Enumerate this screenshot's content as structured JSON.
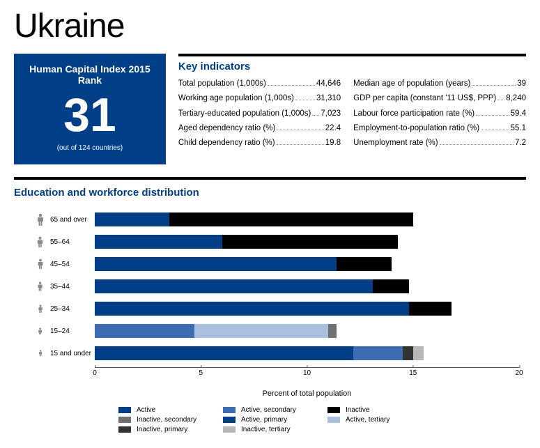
{
  "title": "Ukraine",
  "rank": {
    "label": "Human Capital Index 2015 Rank",
    "value": "31",
    "sub": "(out of 124 countries)"
  },
  "key": {
    "title": "Key indicators",
    "left": [
      {
        "l": "Total population (1,000s)",
        "v": "44,646"
      },
      {
        "l": "Working age population (1,000s)",
        "v": "31,310"
      },
      {
        "l": "Tertiary-educated population (1,000s)",
        "v": "7,023"
      },
      {
        "l": "Aged dependency ratio (%)",
        "v": "22.4"
      },
      {
        "l": "Child dependency ratio (%)",
        "v": "19.8"
      }
    ],
    "right": [
      {
        "l": "Median age of population (years)",
        "v": "39"
      },
      {
        "l": "GDP per capita (constant '11 US$, PPP)",
        "v": "8,240"
      },
      {
        "l": "Labour force participation rate (%)",
        "v": "59.4"
      },
      {
        "l": "Employment-to-population ratio (%)",
        "v": "55.1"
      },
      {
        "l": "Unemployment rate (%)",
        "v": "7.2"
      }
    ]
  },
  "section_title": "Education and workforce distribution",
  "chart": {
    "xmax": 20,
    "ticks": [
      0,
      5,
      10,
      15,
      20
    ],
    "xlabel": "Percent of total population",
    "colors": {
      "active": "#003f87",
      "active_primary": "#003f87",
      "active_secondary": "#3d6cb3",
      "active_tertiary": "#a9c0de",
      "inactive": "#000000",
      "inactive_primary": "#333333",
      "inactive_secondary": "#707070",
      "inactive_tertiary": "#b8b8b8",
      "person": "#8a8a8a"
    },
    "rows": [
      {
        "label": "65 and over",
        "size": 1.0,
        "segs": [
          {
            "c": "active",
            "w": 3.5
          },
          {
            "c": "inactive",
            "w": 11.5
          }
        ]
      },
      {
        "label": "55–64",
        "size": 0.92,
        "segs": [
          {
            "c": "active",
            "w": 6.0
          },
          {
            "c": "inactive",
            "w": 8.3
          }
        ]
      },
      {
        "label": "45–54",
        "size": 0.84,
        "segs": [
          {
            "c": "active",
            "w": 11.4
          },
          {
            "c": "inactive",
            "w": 2.6
          }
        ]
      },
      {
        "label": "35–44",
        "size": 0.76,
        "segs": [
          {
            "c": "active",
            "w": 13.1
          },
          {
            "c": "inactive",
            "w": 1.7
          }
        ]
      },
      {
        "label": "25–34",
        "size": 0.68,
        "segs": [
          {
            "c": "active",
            "w": 14.8
          },
          {
            "c": "inactive",
            "w": 2.0
          }
        ]
      },
      {
        "label": "15–24",
        "size": 0.6,
        "segs": [
          {
            "c": "active_secondary",
            "w": 4.7
          },
          {
            "c": "active_tertiary",
            "w": 6.3
          },
          {
            "c": "inactive_secondary",
            "w": 0.4
          }
        ]
      },
      {
        "label": "15 and under",
        "size": 0.52,
        "segs": [
          {
            "c": "active_primary",
            "w": 12.2
          },
          {
            "c": "active_secondary",
            "w": 2.3
          },
          {
            "c": "inactive_primary",
            "w": 0.5
          },
          {
            "c": "inactive_tertiary",
            "w": 0.5
          }
        ]
      }
    ],
    "legend": [
      {
        "c": "active",
        "l": "Active"
      },
      {
        "c": "active_secondary",
        "l": "Active, secondary"
      },
      {
        "c": "inactive",
        "l": "Inactive"
      },
      {
        "c": "inactive_secondary",
        "l": "Inactive, secondary"
      },
      {
        "c": "active_primary",
        "l": "Active, primary"
      },
      {
        "c": "active_tertiary",
        "l": "Active, tertiary"
      },
      {
        "c": "inactive_primary",
        "l": "Inactive, primary"
      },
      {
        "c": "inactive_tertiary",
        "l": "Inactive, tertiary"
      }
    ]
  }
}
